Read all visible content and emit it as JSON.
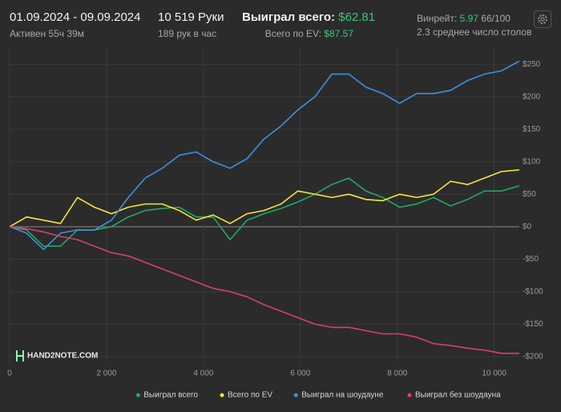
{
  "header": {
    "date_range": "01.09.2024 - 09.09.2024",
    "active": "Активен 55ч 39м",
    "hands": "10 519 Руки",
    "hands_per_hour": "189 рук в час",
    "won_label": "Выиграл всего:",
    "won_value": "$62.81",
    "ev_label": "Всего по EV:",
    "ev_value": "$87.57",
    "winrate_label": "Винрейт:",
    "winrate_value": "5.97",
    "winrate_extra": "66/100",
    "avg_tables": "2.3 среднее число столов"
  },
  "logo": "HAND2NOTE.COM",
  "chart_data": {
    "type": "line",
    "x": [
      0,
      350,
      700,
      1050,
      1400,
      1750,
      2100,
      2450,
      2800,
      3150,
      3500,
      3850,
      4200,
      4550,
      4900,
      5250,
      5600,
      5950,
      6300,
      6650,
      7000,
      7350,
      7700,
      8050,
      8400,
      8750,
      9100,
      9450,
      9800,
      10150,
      10519
    ],
    "series": [
      {
        "name": "Выиграл всего",
        "color": "#22a866",
        "values": [
          0,
          -5,
          -30,
          -30,
          -5,
          -5,
          0,
          15,
          25,
          28,
          30,
          15,
          15,
          -20,
          10,
          20,
          28,
          38,
          50,
          65,
          75,
          55,
          45,
          30,
          35,
          45,
          32,
          42,
          55,
          55,
          62.81
        ]
      },
      {
        "name": "Всего по EV",
        "color": "#f2e634",
        "values": [
          0,
          15,
          10,
          5,
          45,
          30,
          20,
          30,
          35,
          35,
          25,
          10,
          18,
          5,
          20,
          25,
          35,
          55,
          50,
          45,
          50,
          42,
          40,
          50,
          45,
          50,
          70,
          65,
          75,
          85,
          87.57
        ]
      },
      {
        "name": "Выиграл на шоудауне",
        "color": "#3f8fe0",
        "values": [
          0,
          -10,
          -35,
          -10,
          -5,
          -5,
          10,
          45,
          75,
          90,
          110,
          115,
          100,
          90,
          105,
          135,
          155,
          180,
          200,
          235,
          235,
          215,
          205,
          190,
          205,
          205,
          210,
          225,
          235,
          240,
          255
        ]
      },
      {
        "name": "Выиграл без шоудауна",
        "color": "#d6406c",
        "values": [
          0,
          -3,
          -8,
          -15,
          -20,
          -30,
          -40,
          -45,
          -55,
          -65,
          -75,
          -85,
          -95,
          -100,
          -108,
          -120,
          -130,
          -140,
          -150,
          -155,
          -155,
          -160,
          -165,
          -165,
          -170,
          -180,
          -183,
          -187,
          -190,
          -195,
          -195
        ]
      }
    ],
    "xlim": [
      0,
      10519
    ],
    "xticks": [
      0,
      {
        "value": 2000,
        "label": "2 000"
      },
      {
        "value": 4000,
        "label": "4 000"
      },
      {
        "value": 6000,
        "label": "6 000"
      },
      {
        "value": 8000,
        "label": "8 000"
      },
      {
        "value": 10000,
        "label": "10 000"
      }
    ],
    "ylim": [
      -210,
      275
    ],
    "yticks": [
      {
        "value": -200,
        "label": "-$200"
      },
      {
        "value": -150,
        "label": "-$150"
      },
      {
        "value": -100,
        "label": "-$100"
      },
      {
        "value": -50,
        "label": "-$50"
      },
      {
        "value": 0,
        "label": "$0"
      },
      {
        "value": 50,
        "label": "$50"
      },
      {
        "value": 100,
        "label": "$100"
      },
      {
        "value": 150,
        "label": "$150"
      },
      {
        "value": 200,
        "label": "$200"
      },
      {
        "value": 250,
        "label": "$250"
      }
    ],
    "grid": true,
    "legend": "bottom-right"
  }
}
